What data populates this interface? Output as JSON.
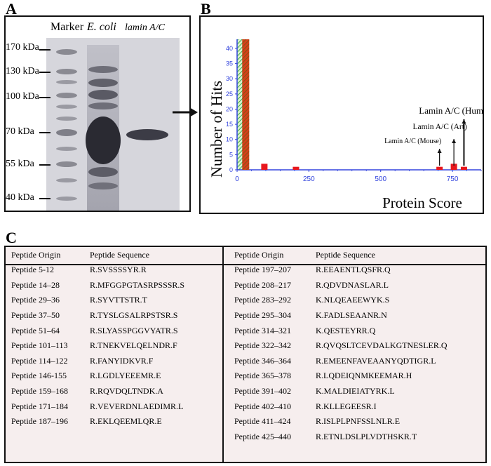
{
  "panels": {
    "a": "A",
    "b": "B",
    "c": "C"
  },
  "gel": {
    "lane_labels": {
      "marker": "Marker",
      "ecoli": "E. coli",
      "lamin": "lamin A/C"
    },
    "markers": [
      "170 kDa",
      "130 kDa",
      "100 kDa",
      "70 kDa",
      "55 kDa",
      "40 kDa"
    ]
  },
  "chart_data": {
    "type": "bar",
    "xlabel": "Protein Score",
    "ylabel": "Number of Hits",
    "x_ticks": [
      0,
      250,
      500,
      750
    ],
    "y_ticks": [
      0,
      5,
      10,
      15,
      20,
      25,
      30,
      35,
      40
    ],
    "xlim": [
      0,
      850
    ],
    "ylim": [
      0,
      43
    ],
    "threshold_region": [
      0,
      42
    ],
    "bars": [
      {
        "x": 30,
        "y": 43
      },
      {
        "x": 95,
        "y": 2
      },
      {
        "x": 205,
        "y": 1
      },
      {
        "x": 705,
        "y": 1
      },
      {
        "x": 755,
        "y": 2
      },
      {
        "x": 790,
        "y": 1
      }
    ],
    "annotations": [
      {
        "text": "Lamin A/C (Mouse)",
        "x": 705
      },
      {
        "text": "Lamin A/C (Art)",
        "x": 755
      },
      {
        "text": "Lamin A/C (Human)",
        "x": 790
      }
    ]
  },
  "table": {
    "headers": {
      "origin": "Peptide Origin",
      "sequence": "Peptide Sequence"
    },
    "left": [
      {
        "origin": "Peptide 5-12",
        "seq": "R.SVSSSSYR.R"
      },
      {
        "origin": "Peptide 14–28",
        "seq": "R.MFGGPGTASRPSSSR.S"
      },
      {
        "origin": "Peptide 29–36",
        "seq": "R.SYVTTSTR.T"
      },
      {
        "origin": "Peptide 37–50",
        "seq": "R.TYSLGSALRPSTSR.S"
      },
      {
        "origin": "Peptide 51–64",
        "seq": "R.SLYASSPGGVYATR.S"
      },
      {
        "origin": "Peptide 101–113",
        "seq": "R.TNEKVELQELNDR.F"
      },
      {
        "origin": "Peptide 114–122",
        "seq": "R.FANYIDKVR.F"
      },
      {
        "origin": "Peptide 146-155",
        "seq": "R.LGDLYEEEMR.E"
      },
      {
        "origin": "Peptide 159–168",
        "seq": "R.RQVDQLTNDK.A"
      },
      {
        "origin": "Peptide 171–184",
        "seq": "R.VEVERDNLAEDIMR.L"
      },
      {
        "origin": "Peptide 187–196",
        "seq": "R.EKLQEEMLQR.E"
      }
    ],
    "right": [
      {
        "origin": "Peptide 197–207",
        "seq": "R.EEAENTLQSFR.Q"
      },
      {
        "origin": "Peptide 208–217",
        "seq": "R.QDVDNASLAR.L"
      },
      {
        "origin": "Peptide 283–292",
        "seq": "K.NLQEAEEWYK.S"
      },
      {
        "origin": "Peptide 295–304",
        "seq": "K.FADLSEAANR.N"
      },
      {
        "origin": "Peptide 314–321",
        "seq": "K.QESTEYRR.Q"
      },
      {
        "origin": "Peptide 322–342",
        "seq": "R.QVQSLTCEVDALKGTNESLER.Q"
      },
      {
        "origin": "Peptide 346–364",
        "seq": "R.EMEENFAVEAANYQDTIGR.L"
      },
      {
        "origin": "Peptide 365–378",
        "seq": "R.LQDEIQNMKEEMAR.H"
      },
      {
        "origin": "Peptide 391–402",
        "seq": "K.MALDIEIATYRK.L"
      },
      {
        "origin": "Peptide 402–410",
        "seq": "R.KLLEGEESR.I"
      },
      {
        "origin": "Peptide 411–424",
        "seq": "R.ISLPLPNFSSLNLR.E"
      },
      {
        "origin": "Peptide 425–440",
        "seq": "R.ETNLDSLPLVDTHSKR.T"
      }
    ]
  }
}
